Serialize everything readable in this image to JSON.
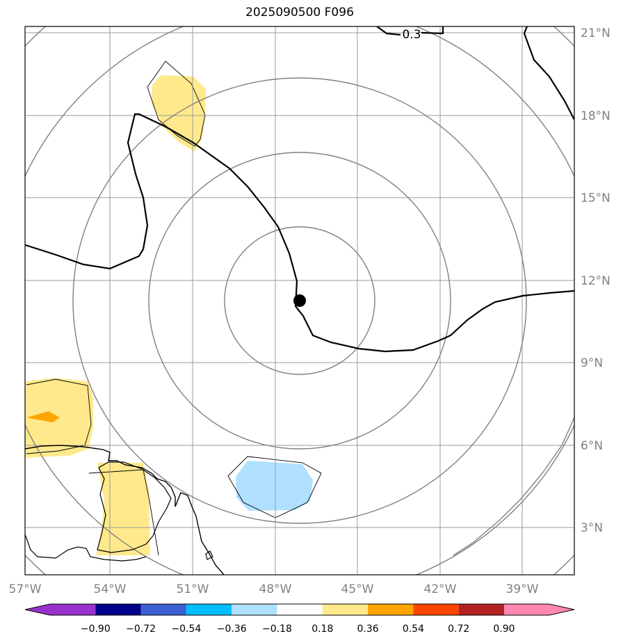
{
  "title": "2025090500 F096",
  "map": {
    "lon_ticks": [
      "57°W",
      "54°W",
      "51°W",
      "48°W",
      "45°W",
      "42°W",
      "39°W"
    ],
    "lat_ticks": [
      "21°N",
      "18°N",
      "15°N",
      "12°N",
      "9°N",
      "6°N",
      "3°N"
    ],
    "contour_label": "0.3",
    "center_marker": "storm-center-dot",
    "colors": {
      "coastline": "#000000",
      "graticule": "#9a9a9a",
      "range_rings": "#808080",
      "zero_contour": "#000000",
      "fill_positive_low": "#ffe98c",
      "fill_positive_mid": "#ffa500",
      "fill_negative_low": "#b0e0ff"
    }
  },
  "colorbar": {
    "labels": [
      "−0.90",
      "−0.72",
      "−0.54",
      "−0.36",
      "−0.18",
      "0.18",
      "0.36",
      "0.54",
      "0.72",
      "0.90"
    ],
    "colors": [
      "#9932cc",
      "#00008b",
      "#3c5fd1",
      "#00bfff",
      "#b0e0ff",
      "#ffffff",
      "#ffe98c",
      "#ffa500",
      "#ff4500",
      "#b22222",
      "#ff88b0"
    ]
  }
}
